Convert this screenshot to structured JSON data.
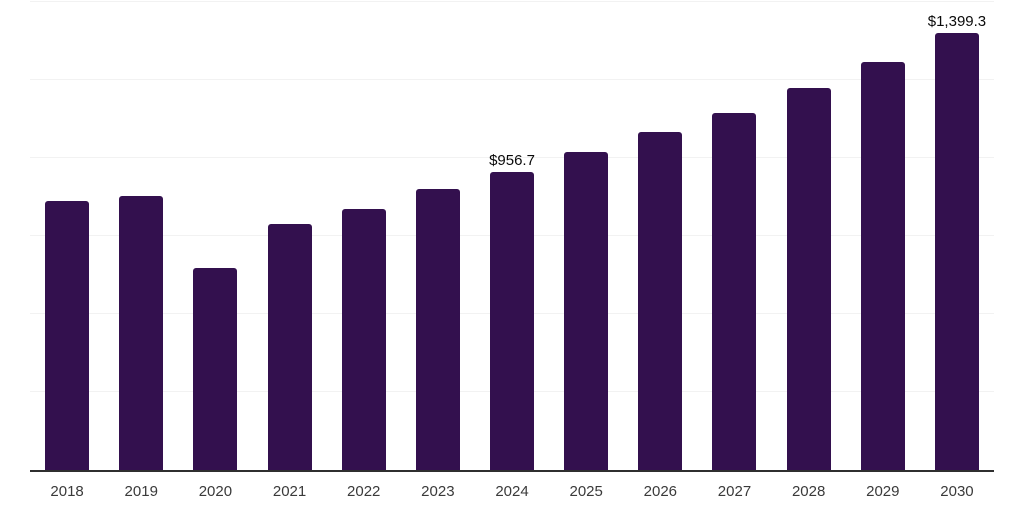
{
  "chart_data": {
    "type": "bar",
    "title": "",
    "xlabel": "",
    "ylabel": "",
    "categories": [
      "2018",
      "2019",
      "2020",
      "2021",
      "2022",
      "2023",
      "2024",
      "2025",
      "2026",
      "2027",
      "2028",
      "2029",
      "2030"
    ],
    "values": [
      863,
      879,
      649,
      790,
      838,
      902,
      956.7,
      1020,
      1084,
      1145,
      1224,
      1308,
      1399.3
    ],
    "point_labels": [
      "",
      "",
      "",
      "",
      "",
      "",
      "$956.7",
      "",
      "",
      "",
      "",
      "",
      "$1,399.3"
    ],
    "ylim": [
      0,
      1500
    ],
    "gridline_step": 250,
    "grid": "horizontal-only",
    "legend": "none",
    "y_axis_tick_labels_visible": false
  },
  "colors": {
    "background": "#ffffff",
    "bar": "#33104E",
    "axis_line": "#2f2f2f",
    "gridline": "#f2f2f2",
    "tick_label": "#3a3a3a",
    "data_label": "#0a0a0a"
  }
}
